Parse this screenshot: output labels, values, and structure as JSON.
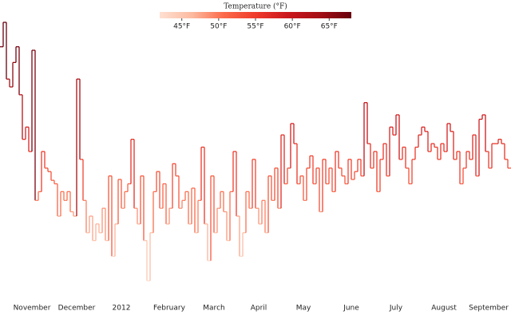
{
  "chart_data": {
    "type": "step-line",
    "legend_title": "Temperature (°F)",
    "colorscale": [
      "#fee0d2",
      "#fcbba1",
      "#fb6a4a",
      "#ef3b2c",
      "#cb181d",
      "#a50f15",
      "#67000d"
    ],
    "colorlim": [
      42,
      68
    ],
    "colorticks": [
      {
        "value": 45,
        "label": "45°F"
      },
      {
        "value": 50,
        "label": "50°F"
      },
      {
        "value": 55,
        "label": "55°F"
      },
      {
        "value": 60,
        "label": "60°F"
      },
      {
        "value": 65,
        "label": "65°F"
      }
    ],
    "categories": [
      null,
      null,
      null,
      null,
      null,
      null,
      null,
      null,
      null,
      null,
      "November",
      null,
      null,
      null,
      null,
      null,
      null,
      null,
      null,
      null,
      null,
      null,
      null,
      null,
      "December",
      null,
      null,
      null,
      null,
      null,
      null,
      null,
      null,
      null,
      null,
      null,
      null,
      null,
      "2012",
      null,
      null,
      null,
      null,
      null,
      null,
      null,
      null,
      null,
      null,
      null,
      null,
      null,
      null,
      "February",
      null,
      null,
      null,
      null,
      null,
      null,
      null,
      null,
      null,
      null,
      null,
      null,
      null,
      "March",
      null,
      null,
      null,
      null,
      null,
      null,
      null,
      null,
      null,
      null,
      null,
      null,
      null,
      "April",
      null,
      null,
      null,
      null,
      null,
      null,
      null,
      null,
      null,
      null,
      null,
      null,
      null,
      "May",
      null,
      null,
      null,
      null,
      null,
      null,
      null,
      null,
      null,
      null,
      null,
      null,
      null,
      null,
      "June",
      null,
      null,
      null,
      null,
      null,
      null,
      null,
      null,
      null,
      null,
      null,
      null,
      null,
      "July",
      null,
      null,
      null,
      null,
      null,
      null,
      null,
      null,
      null,
      null,
      null,
      null,
      null,
      null,
      "August",
      null,
      null,
      null,
      null,
      null,
      null,
      null,
      null,
      null,
      null,
      null,
      null,
      null,
      "September",
      null,
      null,
      null,
      null,
      null,
      null
    ],
    "values": [
      67,
      69.8,
      63.3,
      62.4,
      65.2,
      67,
      61.5,
      56.4,
      57.8,
      55,
      66.6,
      49.4,
      50.4,
      55,
      53.1,
      52.7,
      51.7,
      51.3,
      47.6,
      50.4,
      49.4,
      50.4,
      48.1,
      47.6,
      63.3,
      54.1,
      49.4,
      45.7,
      47.6,
      44.8,
      46.7,
      45.7,
      48.5,
      44.8,
      52.2,
      43,
      46.7,
      51.8,
      48.5,
      50.4,
      51.3,
      56.4,
      48.5,
      46.7,
      52.2,
      44.8,
      40.2,
      45.7,
      50.4,
      52.7,
      48.5,
      51.3,
      46.7,
      48.5,
      53.6,
      52.2,
      48.5,
      49.4,
      50.4,
      46.7,
      50.8,
      45.7,
      49.4,
      55.5,
      46.7,
      42.5,
      52.2,
      45.7,
      48.5,
      50.4,
      48.1,
      44.8,
      50.4,
      55,
      47.6,
      43,
      45.7,
      50.4,
      48.5,
      54.1,
      48.5,
      46.7,
      49.4,
      45.7,
      52.2,
      49.4,
      53.1,
      48.5,
      56.9,
      51.3,
      53.1,
      58.2,
      55.9,
      51.3,
      52.2,
      49.4,
      53.1,
      54.5,
      51.3,
      53.1,
      48.1,
      54.1,
      51.3,
      53.1,
      50.4,
      55,
      53.1,
      52.2,
      51.3,
      54.1,
      51.8,
      52.7,
      54.1,
      52.2,
      60.6,
      55.9,
      53.1,
      55,
      50.4,
      54.1,
      55.9,
      52.2,
      57.8,
      56.9,
      59.2,
      54.1,
      55.5,
      53.1,
      51.3,
      54.1,
      55.5,
      56.9,
      57.8,
      57.3,
      55,
      55.9,
      55.5,
      54.1,
      55.9,
      55,
      58.2,
      57.3,
      54.1,
      55,
      51.3,
      53.1,
      55,
      54.1,
      56.9,
      52.2,
      58.7,
      59.2,
      55,
      53.1,
      55.9,
      55.9,
      56.4,
      55.9,
      54.1,
      53.1
    ]
  }
}
